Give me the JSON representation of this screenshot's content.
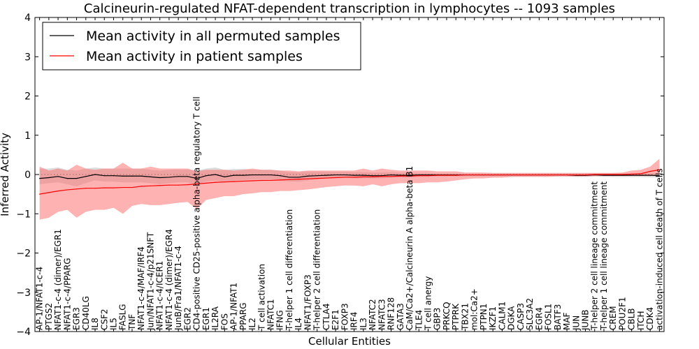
{
  "chart_data": {
    "type": "line",
    "title": "Calcineurin-regulated NFAT-dependent transcription in lymphocytes -- 1093 samples",
    "xlabel": "Cellular Entities",
    "ylabel": "Inferred Activity",
    "ylim": [
      -4,
      4
    ],
    "yticks": [
      -4,
      -3,
      -2,
      -1,
      0,
      1,
      2,
      3,
      4
    ],
    "ytick_labels": [
      "−4",
      "−3",
      "−2",
      "−1",
      "0",
      "1",
      "2",
      "3",
      "4"
    ],
    "legend_position": "top-left",
    "colors": {
      "permuted": "#000000",
      "permuted_band": "#bbbbbb",
      "patient": "#ff0000",
      "patient_band": "#ff6666",
      "zero_line": "#000000"
    },
    "categories": [
      "AP-1/NFAT1-c-4",
      "PTGS2",
      "NFAT1-c-4 (dimer)/EGR1",
      "NFAT1-c-4/PPARG",
      "EGR3",
      "CD40LG",
      "IL8",
      "CSF2",
      "IL5",
      "FASLG",
      "TNF",
      "NFAT1-c-4/MAF/IRF4",
      "Jun/NFAT1-c-4/p21SNFT",
      "NFAT1-c-4/ICER1",
      "NFAT1-c-4 (dimer)/EGR4",
      "JunB/Fra1/NFAT1-c-4",
      "EGR2",
      "CD4-positive CD25-positive alpha-beta regulatory T cell",
      "EGR1",
      "IL2RA",
      "FOS",
      "AP-1/NFAT1",
      "PPARG",
      "IL2",
      "T cell activation",
      "NFATC1",
      "IFNG",
      "T-helper 1 cell differentiation",
      "IL4",
      "NFAT1/FOXP3",
      "T-helper 2 cell differentiation",
      "CTLA4",
      "E2F1",
      "FOXP3",
      "IRF4",
      "IL3",
      "NFATC2",
      "NFATC3",
      "RNF128",
      "GATA3",
      "CaM/Ca2+/Calcineurin A alpha-beta B1",
      "TLE4",
      "T cell anergy",
      "GBP3",
      "PRKCQ",
      "PTPRK",
      "TBX21",
      "mol:Ca2+",
      "PTPN1",
      "IKZF1",
      "CALM1",
      "DGKA",
      "CASP3",
      "SLC3A2",
      "EGR4",
      "FOSL1",
      "BATF3",
      "MAF",
      "JUN",
      "JUNB",
      "T-helper 2 cell lineage commitment",
      "T-helper 1 cell lineage commitment",
      "CREM",
      "POU2F1",
      "CBLB",
      "ITCH",
      "CDK4",
      "activation-induced cell death of T cells"
    ],
    "series": [
      {
        "name": "Mean activity in all permuted samples",
        "values": [
          -0.1,
          -0.08,
          -0.05,
          -0.1,
          -0.1,
          -0.05,
          0.0,
          -0.03,
          -0.03,
          -0.04,
          -0.04,
          -0.04,
          -0.06,
          -0.08,
          -0.07,
          -0.05,
          -0.05,
          -0.1,
          -0.03,
          0.0,
          -0.06,
          -0.02,
          -0.02,
          -0.01,
          -0.01,
          -0.01,
          -0.03,
          -0.07,
          -0.07,
          -0.04,
          -0.03,
          -0.02,
          -0.01,
          -0.01,
          -0.02,
          -0.02,
          -0.03,
          -0.03,
          -0.01,
          -0.02,
          -0.02,
          -0.01,
          -0.01,
          -0.01,
          -0.01,
          -0.01,
          -0.01,
          -0.01,
          -0.01,
          -0.01,
          -0.01,
          -0.01,
          -0.01,
          -0.01,
          -0.01,
          -0.01,
          -0.01,
          -0.01,
          -0.02,
          -0.02,
          -0.01,
          -0.02,
          -0.02,
          -0.02,
          -0.02,
          -0.02,
          -0.02,
          -0.03
        ],
        "lower": [
          -0.25,
          -0.22,
          -0.2,
          -0.25,
          -0.3,
          -0.22,
          -0.15,
          -0.18,
          -0.18,
          -0.2,
          -0.2,
          -0.2,
          -0.22,
          -0.25,
          -0.22,
          -0.2,
          -0.2,
          -0.25,
          -0.18,
          -0.15,
          -0.2,
          -0.15,
          -0.15,
          -0.12,
          -0.12,
          -0.12,
          -0.15,
          -0.18,
          -0.18,
          -0.15,
          -0.12,
          -0.1,
          -0.08,
          -0.08,
          -0.1,
          -0.1,
          -0.1,
          -0.1,
          -0.08,
          -0.08,
          -0.08,
          -0.06,
          -0.06,
          -0.05,
          -0.05,
          -0.05,
          -0.05,
          -0.05,
          -0.05,
          -0.05,
          -0.05,
          -0.05,
          -0.05,
          -0.05,
          -0.05,
          -0.05,
          -0.05,
          -0.05,
          -0.06,
          -0.06,
          -0.05,
          -0.06,
          -0.06,
          -0.06,
          -0.06,
          -0.06,
          -0.07,
          -0.08
        ],
        "upper": [
          0.15,
          0.15,
          0.18,
          0.12,
          0.1,
          0.15,
          0.18,
          0.15,
          0.15,
          0.15,
          0.15,
          0.15,
          0.12,
          0.1,
          0.12,
          0.13,
          0.13,
          0.1,
          0.15,
          0.18,
          0.12,
          0.14,
          0.14,
          0.12,
          0.12,
          0.12,
          0.1,
          0.06,
          0.06,
          0.08,
          0.08,
          0.07,
          0.07,
          0.07,
          0.06,
          0.06,
          0.05,
          0.05,
          0.06,
          0.05,
          0.05,
          0.04,
          0.04,
          0.03,
          0.03,
          0.03,
          0.03,
          0.03,
          0.03,
          0.03,
          0.03,
          0.03,
          0.03,
          0.03,
          0.03,
          0.03,
          0.03,
          0.03,
          0.03,
          0.03,
          0.03,
          0.03,
          0.03,
          0.03,
          0.03,
          0.03,
          0.03,
          0.03
        ]
      },
      {
        "name": "Mean activity in patient samples",
        "values": [
          -0.5,
          -0.46,
          -0.42,
          -0.39,
          -0.37,
          -0.35,
          -0.35,
          -0.34,
          -0.34,
          -0.33,
          -0.33,
          -0.3,
          -0.29,
          -0.28,
          -0.27,
          -0.27,
          -0.26,
          -0.24,
          -0.22,
          -0.2,
          -0.19,
          -0.18,
          -0.17,
          -0.16,
          -0.15,
          -0.15,
          -0.14,
          -0.13,
          -0.12,
          -0.11,
          -0.1,
          -0.09,
          -0.08,
          -0.07,
          -0.07,
          -0.06,
          -0.06,
          -0.05,
          -0.05,
          -0.04,
          -0.04,
          -0.03,
          -0.03,
          -0.02,
          -0.02,
          -0.02,
          -0.01,
          -0.01,
          -0.01,
          -0.01,
          -0.01,
          -0.01,
          -0.01,
          -0.01,
          -0.01,
          -0.01,
          -0.01,
          -0.01,
          -0.01,
          -0.01,
          0.0,
          0.0,
          0.0,
          0.0,
          0.01,
          0.02,
          0.08,
          0.12
        ],
        "lower": [
          -1.15,
          -1.1,
          -0.95,
          -0.9,
          -1.1,
          -0.95,
          -0.9,
          -0.9,
          -0.85,
          -1.0,
          -0.8,
          -0.75,
          -0.78,
          -0.78,
          -0.75,
          -0.72,
          -0.7,
          -0.88,
          -0.65,
          -0.6,
          -0.55,
          -0.55,
          -0.5,
          -0.48,
          -0.45,
          -0.45,
          -0.42,
          -0.42,
          -0.4,
          -0.38,
          -0.35,
          -0.32,
          -0.3,
          -0.28,
          -0.28,
          -0.3,
          -0.25,
          -0.3,
          -0.25,
          -0.22,
          -0.22,
          -0.22,
          -0.2,
          -0.2,
          -0.18,
          -0.15,
          -0.12,
          -0.1,
          -0.1,
          -0.08,
          -0.08,
          -0.06,
          -0.06,
          -0.06,
          -0.06,
          -0.06,
          -0.05,
          -0.05,
          -0.05,
          -0.05,
          -0.04,
          -0.04,
          -0.04,
          -0.04,
          -0.04,
          -0.04,
          -0.04,
          0.0
        ],
        "upper": [
          0.2,
          0.1,
          0.15,
          0.1,
          0.25,
          0.15,
          0.12,
          0.15,
          0.15,
          0.3,
          0.15,
          0.15,
          0.2,
          0.15,
          0.15,
          0.15,
          0.15,
          0.08,
          0.12,
          0.12,
          0.12,
          0.1,
          0.12,
          0.15,
          0.12,
          0.12,
          0.1,
          0.1,
          0.08,
          0.1,
          0.1,
          0.1,
          0.1,
          0.1,
          0.1,
          0.15,
          0.1,
          0.15,
          0.12,
          0.1,
          0.1,
          0.1,
          0.1,
          0.08,
          0.08,
          0.08,
          0.05,
          0.05,
          0.05,
          0.04,
          0.04,
          0.04,
          0.04,
          0.04,
          0.04,
          0.04,
          0.04,
          0.04,
          0.04,
          0.04,
          0.04,
          0.04,
          0.04,
          0.05,
          0.1,
          0.12,
          0.2,
          0.4
        ]
      }
    ]
  }
}
